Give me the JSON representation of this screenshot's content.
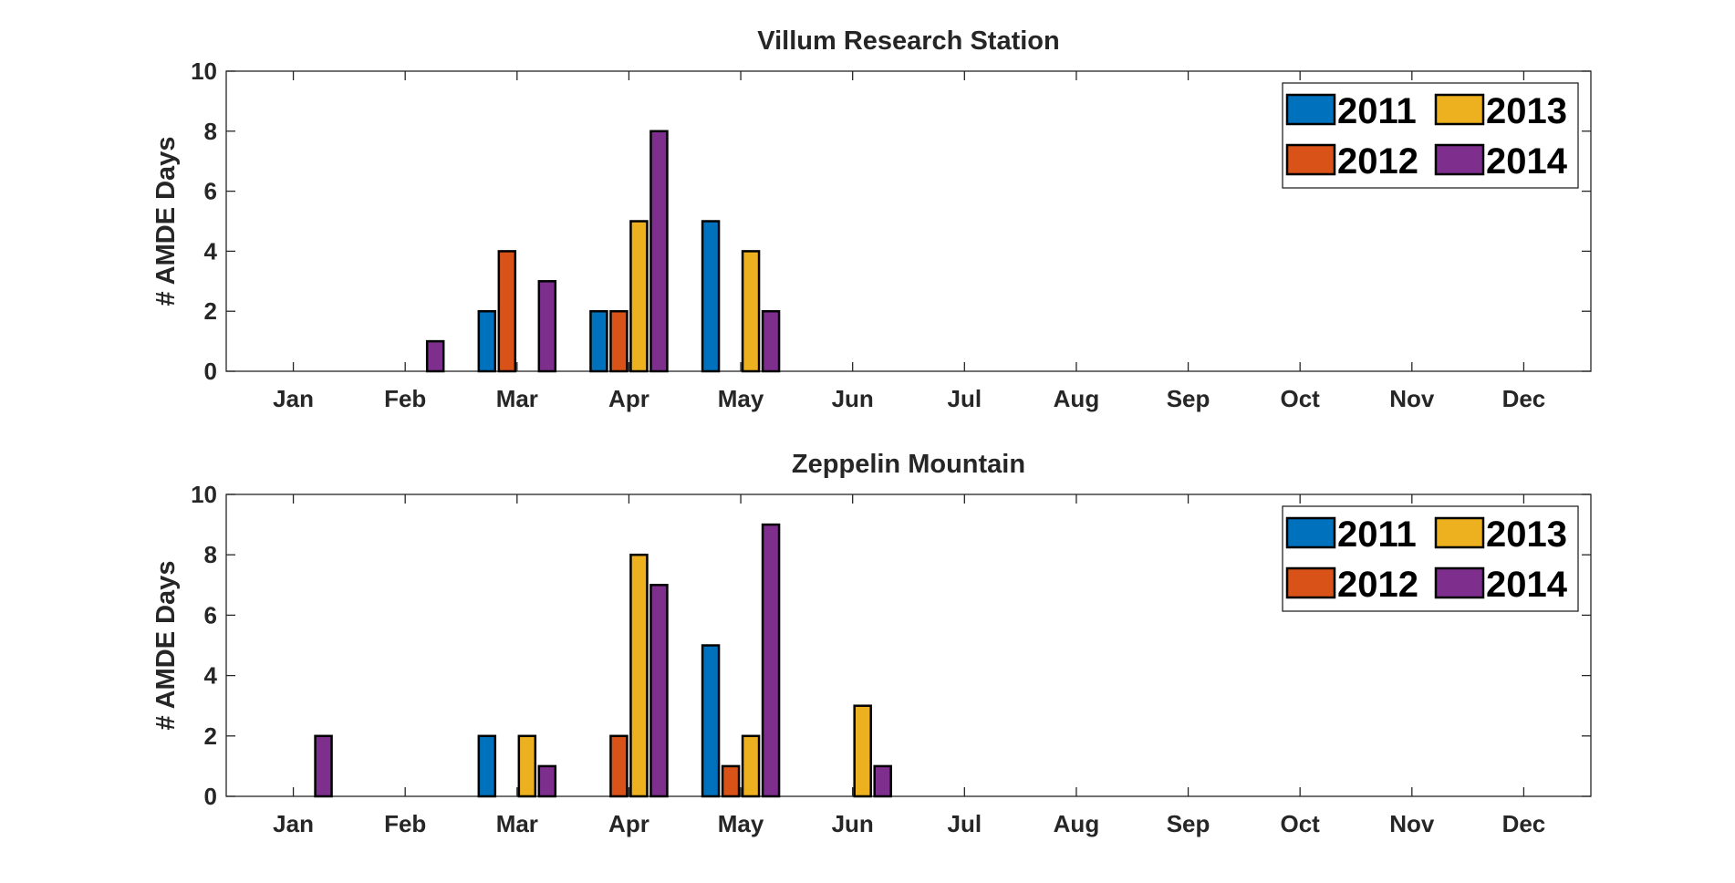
{
  "chart_data": [
    {
      "type": "bar",
      "title": "Villum Research Station",
      "ylabel": "# AMDE Days",
      "xlabel": "",
      "categories": [
        "Jan",
        "Feb",
        "Mar",
        "Apr",
        "May",
        "Jun",
        "Jul",
        "Aug",
        "Sep",
        "Oct",
        "Nov",
        "Dec"
      ],
      "ylim": [
        0,
        10
      ],
      "yticks": [
        0,
        2,
        4,
        6,
        8,
        10
      ],
      "legend_position": "top-right",
      "series": [
        {
          "name": "2011",
          "color": "#0072BD",
          "values": [
            0,
            0,
            2,
            2,
            5,
            0,
            0,
            0,
            0,
            0,
            0,
            0
          ]
        },
        {
          "name": "2012",
          "color": "#D95319",
          "values": [
            0,
            0,
            4,
            2,
            0,
            0,
            0,
            0,
            0,
            0,
            0,
            0
          ]
        },
        {
          "name": "2013",
          "color": "#EDB120",
          "values": [
            0,
            0,
            0,
            5,
            4,
            0,
            0,
            0,
            0,
            0,
            0,
            0
          ]
        },
        {
          "name": "2014",
          "color": "#7E2F8E",
          "values": [
            0,
            1,
            3,
            8,
            2,
            0,
            0,
            0,
            0,
            0,
            0,
            0
          ]
        }
      ]
    },
    {
      "type": "bar",
      "title": "Zeppelin Mountain",
      "ylabel": "# AMDE Days",
      "xlabel": "",
      "categories": [
        "Jan",
        "Feb",
        "Mar",
        "Apr",
        "May",
        "Jun",
        "Jul",
        "Aug",
        "Sep",
        "Oct",
        "Nov",
        "Dec"
      ],
      "ylim": [
        0,
        10
      ],
      "yticks": [
        0,
        2,
        4,
        6,
        8,
        10
      ],
      "legend_position": "top-right",
      "series": [
        {
          "name": "2011",
          "color": "#0072BD",
          "values": [
            0,
            0,
            2,
            0,
            5,
            0,
            0,
            0,
            0,
            0,
            0,
            0
          ]
        },
        {
          "name": "2012",
          "color": "#D95319",
          "values": [
            0,
            0,
            0,
            2,
            1,
            0,
            0,
            0,
            0,
            0,
            0,
            0
          ]
        },
        {
          "name": "2013",
          "color": "#EDB120",
          "values": [
            0,
            0,
            2,
            8,
            2,
            3,
            0,
            0,
            0,
            0,
            0,
            0
          ]
        },
        {
          "name": "2014",
          "color": "#7E2F8E",
          "values": [
            2,
            0,
            1,
            7,
            9,
            1,
            0,
            0,
            0,
            0,
            0,
            0
          ]
        }
      ]
    }
  ]
}
